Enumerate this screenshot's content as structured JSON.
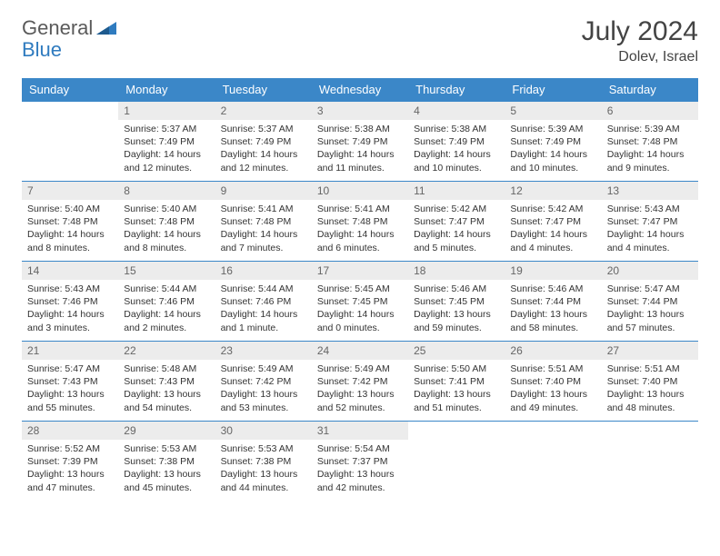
{
  "logo": {
    "general": "General",
    "blue": "Blue"
  },
  "title": "July 2024",
  "location": "Dolev, Israel",
  "weekdays": [
    "Sunday",
    "Monday",
    "Tuesday",
    "Wednesday",
    "Thursday",
    "Friday",
    "Saturday"
  ],
  "colors": {
    "header_bg": "#3b87c8",
    "header_fg": "#ffffff",
    "daynum_bg": "#ececec",
    "border": "#3b87c8",
    "logo_gray": "#5a5a5a",
    "logo_blue": "#2f7bbf"
  },
  "weeks": [
    [
      null,
      {
        "n": "1",
        "sr": "Sunrise: 5:37 AM",
        "ss": "Sunset: 7:49 PM",
        "dl": "Daylight: 14 hours and 12 minutes."
      },
      {
        "n": "2",
        "sr": "Sunrise: 5:37 AM",
        "ss": "Sunset: 7:49 PM",
        "dl": "Daylight: 14 hours and 12 minutes."
      },
      {
        "n": "3",
        "sr": "Sunrise: 5:38 AM",
        "ss": "Sunset: 7:49 PM",
        "dl": "Daylight: 14 hours and 11 minutes."
      },
      {
        "n": "4",
        "sr": "Sunrise: 5:38 AM",
        "ss": "Sunset: 7:49 PM",
        "dl": "Daylight: 14 hours and 10 minutes."
      },
      {
        "n": "5",
        "sr": "Sunrise: 5:39 AM",
        "ss": "Sunset: 7:49 PM",
        "dl": "Daylight: 14 hours and 10 minutes."
      },
      {
        "n": "6",
        "sr": "Sunrise: 5:39 AM",
        "ss": "Sunset: 7:48 PM",
        "dl": "Daylight: 14 hours and 9 minutes."
      }
    ],
    [
      {
        "n": "7",
        "sr": "Sunrise: 5:40 AM",
        "ss": "Sunset: 7:48 PM",
        "dl": "Daylight: 14 hours and 8 minutes."
      },
      {
        "n": "8",
        "sr": "Sunrise: 5:40 AM",
        "ss": "Sunset: 7:48 PM",
        "dl": "Daylight: 14 hours and 8 minutes."
      },
      {
        "n": "9",
        "sr": "Sunrise: 5:41 AM",
        "ss": "Sunset: 7:48 PM",
        "dl": "Daylight: 14 hours and 7 minutes."
      },
      {
        "n": "10",
        "sr": "Sunrise: 5:41 AM",
        "ss": "Sunset: 7:48 PM",
        "dl": "Daylight: 14 hours and 6 minutes."
      },
      {
        "n": "11",
        "sr": "Sunrise: 5:42 AM",
        "ss": "Sunset: 7:47 PM",
        "dl": "Daylight: 14 hours and 5 minutes."
      },
      {
        "n": "12",
        "sr": "Sunrise: 5:42 AM",
        "ss": "Sunset: 7:47 PM",
        "dl": "Daylight: 14 hours and 4 minutes."
      },
      {
        "n": "13",
        "sr": "Sunrise: 5:43 AM",
        "ss": "Sunset: 7:47 PM",
        "dl": "Daylight: 14 hours and 4 minutes."
      }
    ],
    [
      {
        "n": "14",
        "sr": "Sunrise: 5:43 AM",
        "ss": "Sunset: 7:46 PM",
        "dl": "Daylight: 14 hours and 3 minutes."
      },
      {
        "n": "15",
        "sr": "Sunrise: 5:44 AM",
        "ss": "Sunset: 7:46 PM",
        "dl": "Daylight: 14 hours and 2 minutes."
      },
      {
        "n": "16",
        "sr": "Sunrise: 5:44 AM",
        "ss": "Sunset: 7:46 PM",
        "dl": "Daylight: 14 hours and 1 minute."
      },
      {
        "n": "17",
        "sr": "Sunrise: 5:45 AM",
        "ss": "Sunset: 7:45 PM",
        "dl": "Daylight: 14 hours and 0 minutes."
      },
      {
        "n": "18",
        "sr": "Sunrise: 5:46 AM",
        "ss": "Sunset: 7:45 PM",
        "dl": "Daylight: 13 hours and 59 minutes."
      },
      {
        "n": "19",
        "sr": "Sunrise: 5:46 AM",
        "ss": "Sunset: 7:44 PM",
        "dl": "Daylight: 13 hours and 58 minutes."
      },
      {
        "n": "20",
        "sr": "Sunrise: 5:47 AM",
        "ss": "Sunset: 7:44 PM",
        "dl": "Daylight: 13 hours and 57 minutes."
      }
    ],
    [
      {
        "n": "21",
        "sr": "Sunrise: 5:47 AM",
        "ss": "Sunset: 7:43 PM",
        "dl": "Daylight: 13 hours and 55 minutes."
      },
      {
        "n": "22",
        "sr": "Sunrise: 5:48 AM",
        "ss": "Sunset: 7:43 PM",
        "dl": "Daylight: 13 hours and 54 minutes."
      },
      {
        "n": "23",
        "sr": "Sunrise: 5:49 AM",
        "ss": "Sunset: 7:42 PM",
        "dl": "Daylight: 13 hours and 53 minutes."
      },
      {
        "n": "24",
        "sr": "Sunrise: 5:49 AM",
        "ss": "Sunset: 7:42 PM",
        "dl": "Daylight: 13 hours and 52 minutes."
      },
      {
        "n": "25",
        "sr": "Sunrise: 5:50 AM",
        "ss": "Sunset: 7:41 PM",
        "dl": "Daylight: 13 hours and 51 minutes."
      },
      {
        "n": "26",
        "sr": "Sunrise: 5:51 AM",
        "ss": "Sunset: 7:40 PM",
        "dl": "Daylight: 13 hours and 49 minutes."
      },
      {
        "n": "27",
        "sr": "Sunrise: 5:51 AM",
        "ss": "Sunset: 7:40 PM",
        "dl": "Daylight: 13 hours and 48 minutes."
      }
    ],
    [
      {
        "n": "28",
        "sr": "Sunrise: 5:52 AM",
        "ss": "Sunset: 7:39 PM",
        "dl": "Daylight: 13 hours and 47 minutes."
      },
      {
        "n": "29",
        "sr": "Sunrise: 5:53 AM",
        "ss": "Sunset: 7:38 PM",
        "dl": "Daylight: 13 hours and 45 minutes."
      },
      {
        "n": "30",
        "sr": "Sunrise: 5:53 AM",
        "ss": "Sunset: 7:38 PM",
        "dl": "Daylight: 13 hours and 44 minutes."
      },
      {
        "n": "31",
        "sr": "Sunrise: 5:54 AM",
        "ss": "Sunset: 7:37 PM",
        "dl": "Daylight: 13 hours and 42 minutes."
      },
      null,
      null,
      null
    ]
  ]
}
